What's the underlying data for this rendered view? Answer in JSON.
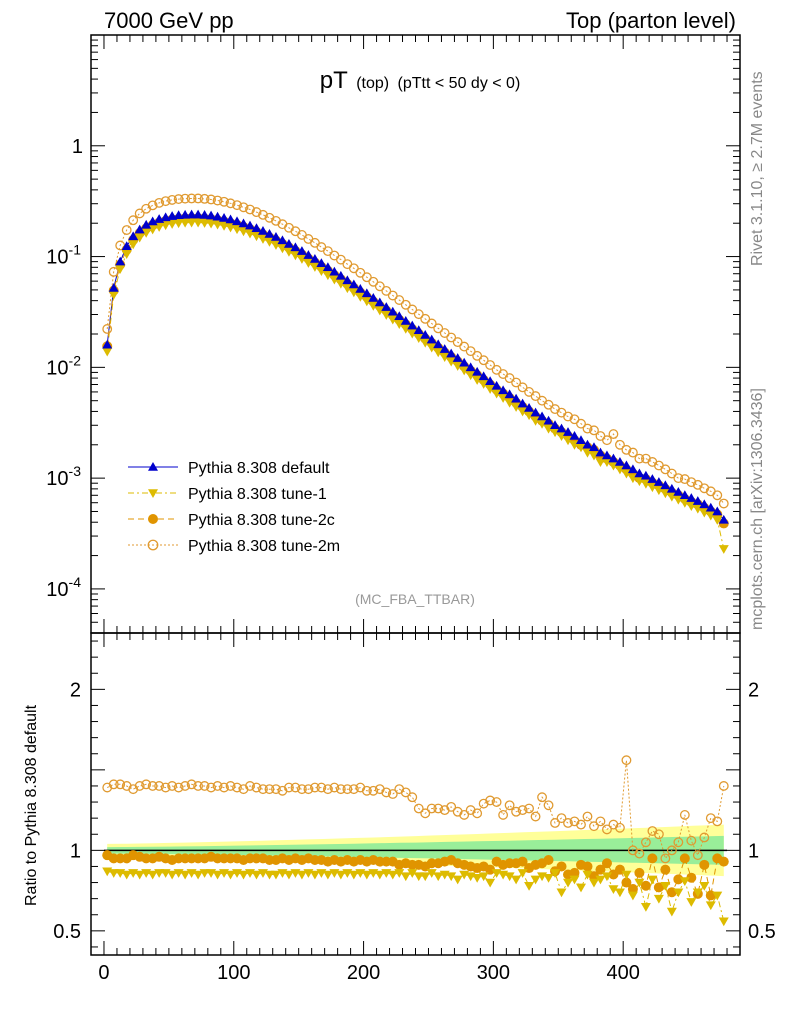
{
  "header": {
    "left": "7000 GeV pp",
    "right": "Top (parton level)"
  },
  "plot_title": {
    "main": "pT",
    "sub1": "(top)",
    "sub2": "(pTtt < 50 dy < 0)"
  },
  "side_labels": {
    "rivet": "Rivet 3.1.10, ≥ 2.7M events",
    "mcplots": "mcplots.cern.ch [arXiv:1306.3436]"
  },
  "analysis_tag": "(MC_FBA_TTBAR)",
  "colors": {
    "default": "#0000cc",
    "tune1": "#ddbb00",
    "tune2c": "#e09400",
    "tune2m": "#e09a30",
    "band_yellow": "#ffff99",
    "band_green": "#99ee99"
  },
  "legend": [
    {
      "key": "default",
      "label": "Pythia 8.308 default"
    },
    {
      "key": "tune1",
      "label": "Pythia 8.308 tune-1"
    },
    {
      "key": "tune2c",
      "label": "Pythia 8.308 tune-2c"
    },
    {
      "key": "tune2m",
      "label": "Pythia 8.308 tune-2m"
    }
  ],
  "chart_data": [
    {
      "type": "line",
      "scale": "log",
      "xlim": [
        -10,
        490
      ],
      "ylim": [
        4e-05,
        10
      ],
      "y_tick_labels": [
        "1",
        "10^-1",
        "10^-2",
        "10^-3",
        "10^-4"
      ],
      "grid": false,
      "legend_position": "bottom-left",
      "x": [
        2.5,
        7.5,
        12.5,
        17.5,
        22.5,
        27.5,
        32.5,
        37.5,
        42.5,
        47.5,
        52.5,
        57.5,
        62.5,
        67.5,
        72.5,
        77.5,
        82.5,
        87.5,
        92.5,
        97.5,
        102.5,
        107.5,
        112.5,
        117.5,
        122.5,
        127.5,
        132.5,
        137.5,
        142.5,
        147.5,
        152.5,
        157.5,
        162.5,
        167.5,
        172.5,
        177.5,
        182.5,
        187.5,
        192.5,
        197.5,
        202.5,
        207.5,
        212.5,
        217.5,
        222.5,
        227.5,
        232.5,
        237.5,
        242.5,
        247.5,
        252.5,
        257.5,
        262.5,
        267.5,
        272.5,
        277.5,
        282.5,
        287.5,
        292.5,
        297.5,
        302.5,
        307.5,
        312.5,
        317.5,
        322.5,
        327.5,
        332.5,
        337.5,
        342.5,
        347.5,
        352.5,
        357.5,
        362.5,
        367.5,
        372.5,
        377.5,
        382.5,
        387.5,
        392.5,
        397.5,
        402.5,
        407.5,
        412.5,
        417.5,
        422.5,
        427.5,
        432.5,
        437.5,
        442.5,
        447.5,
        452.5,
        457.5,
        462.5,
        467.5,
        472.5,
        477.5
      ],
      "series": [
        {
          "name": "Pythia 8.308 default",
          "key": "default",
          "values": [
            0.016,
            0.052,
            0.09,
            0.124,
            0.152,
            0.175,
            0.193,
            0.207,
            0.218,
            0.226,
            0.232,
            0.236,
            0.238,
            0.239,
            0.239,
            0.237,
            0.234,
            0.229,
            0.223,
            0.216,
            0.208,
            0.199,
            0.19,
            0.18,
            0.17,
            0.16,
            0.15,
            0.14,
            0.13,
            0.121,
            0.112,
            0.103,
            0.095,
            0.087,
            0.08,
            0.073,
            0.067,
            0.061,
            0.056,
            0.051,
            0.0465,
            0.0423,
            0.0385,
            0.035,
            0.0318,
            0.0289,
            0.0262,
            0.0238,
            0.0216,
            0.0196,
            0.0178,
            0.0161,
            0.0146,
            0.0133,
            0.0121,
            0.011,
            0.01,
            0.0091,
            0.0083,
            0.0075,
            0.0068,
            0.0062,
            0.0057,
            0.0052,
            0.0047,
            0.0043,
            0.0039,
            0.0036,
            0.0033,
            0.003,
            0.0028,
            0.0026,
            0.0024,
            0.0022,
            0.002,
            0.0019,
            0.0017,
            0.0016,
            0.0015,
            0.0014,
            0.0013,
            0.0012,
            0.0011,
            0.00105,
            0.00098,
            0.00092,
            0.00086,
            0.0008,
            0.00075,
            0.0007,
            0.00066,
            0.00062,
            0.00058,
            0.00054,
            0.0005,
            0.00042
          ]
        },
        {
          "name": "Pythia 8.308 tune-1",
          "key": "tune1",
          "values": [
            0.0139,
            0.0452,
            0.0774,
            0.1054,
            0.1292,
            0.1488,
            0.1641,
            0.1759,
            0.1853,
            0.1921,
            0.1972,
            0.2006,
            0.2023,
            0.2032,
            0.2032,
            0.2015,
            0.1989,
            0.1947,
            0.1896,
            0.1836,
            0.1768,
            0.1692,
            0.1615,
            0.153,
            0.1445,
            0.136,
            0.1275,
            0.119,
            0.1105,
            0.1029,
            0.0952,
            0.0876,
            0.0808,
            0.074,
            0.068,
            0.0621,
            0.057,
            0.0519,
            0.0476,
            0.0434,
            0.0395,
            0.036,
            0.0327,
            0.0298,
            0.027,
            0.0246,
            0.0223,
            0.0202,
            0.0184,
            0.0167,
            0.0151,
            0.0137,
            0.0124,
            0.0113,
            0.0103,
            0.0094,
            0.0085,
            0.0077,
            0.0071,
            0.0064,
            0.0058,
            0.0053,
            0.0048,
            0.0044,
            0.004,
            0.0037,
            0.0033,
            0.0031,
            0.0028,
            0.0026,
            0.0024,
            0.0022,
            0.002,
            0.0019,
            0.0017,
            0.0016,
            0.0014,
            0.0014,
            0.0013,
            0.0012,
            0.0011,
            0.001,
            0.00094,
            0.00089,
            0.00083,
            0.00078,
            0.00073,
            0.00068,
            0.00064,
            0.0006,
            0.00056,
            0.00053,
            0.00049,
            0.00046,
            0.00042,
            0.00023
          ]
        },
        {
          "name": "Pythia 8.308 tune-2c",
          "key": "tune2c",
          "values": [
            0.0155,
            0.0494,
            0.0846,
            0.1153,
            0.1414,
            0.1628,
            0.1795,
            0.1925,
            0.2027,
            0.2102,
            0.2158,
            0.2195,
            0.2213,
            0.2223,
            0.2223,
            0.2204,
            0.2176,
            0.213,
            0.2074,
            0.2009,
            0.1934,
            0.1851,
            0.1767,
            0.1674,
            0.1581,
            0.1488,
            0.1395,
            0.1302,
            0.1209,
            0.1125,
            0.1042,
            0.0958,
            0.0884,
            0.0809,
            0.0744,
            0.0679,
            0.0623,
            0.0567,
            0.0521,
            0.0474,
            0.0432,
            0.0393,
            0.0358,
            0.0326,
            0.0296,
            0.0269,
            0.0244,
            0.0221,
            0.0201,
            0.0182,
            0.0166,
            0.015,
            0.0136,
            0.0124,
            0.0113,
            0.0102,
            0.0093,
            0.0085,
            0.0077,
            0.007,
            0.0063,
            0.0058,
            0.0053,
            0.0048,
            0.0044,
            0.004,
            0.0036,
            0.0033,
            0.0031,
            0.0028,
            0.0026,
            0.0024,
            0.0022,
            0.002,
            0.0019,
            0.0018,
            0.0016,
            0.0015,
            0.0014,
            0.0013,
            0.0012,
            0.0011,
            0.001,
            0.00098,
            0.00091,
            0.00086,
            0.0008,
            0.00074,
            0.0007,
            0.00065,
            0.00061,
            0.00058,
            0.00054,
            0.0005,
            0.00047,
            0.00039
          ]
        },
        {
          "name": "Pythia 8.308 tune-2m",
          "key": "tune2m",
          "values": [
            0.0222,
            0.0728,
            0.126,
            0.1736,
            0.2128,
            0.245,
            0.2702,
            0.2898,
            0.3052,
            0.3164,
            0.3248,
            0.3304,
            0.3332,
            0.3346,
            0.3346,
            0.3318,
            0.3276,
            0.3206,
            0.3122,
            0.3024,
            0.2912,
            0.2786,
            0.266,
            0.252,
            0.238,
            0.224,
            0.21,
            0.196,
            0.182,
            0.1694,
            0.1568,
            0.1442,
            0.133,
            0.1218,
            0.112,
            0.1022,
            0.0938,
            0.0854,
            0.0784,
            0.0714,
            0.0651,
            0.0592,
            0.0539,
            0.049,
            0.0445,
            0.0405,
            0.0367,
            0.0333,
            0.0302,
            0.0274,
            0.0249,
            0.0225,
            0.0204,
            0.0186,
            0.0169,
            0.0154,
            0.014,
            0.0127,
            0.0116,
            0.0105,
            0.0095,
            0.0087,
            0.008,
            0.0073,
            0.0066,
            0.006,
            0.0055,
            0.005,
            0.0046,
            0.0042,
            0.0039,
            0.0036,
            0.0034,
            0.0031,
            0.0028,
            0.0027,
            0.0024,
            0.0022,
            0.0025,
            0.002,
            0.0018,
            0.0017,
            0.0015,
            0.0015,
            0.0014,
            0.0013,
            0.0012,
            0.0011,
            0.001,
            0.00098,
            0.00092,
            0.00087,
            0.00081,
            0.00076,
            0.0007,
            0.00059
          ]
        }
      ]
    },
    {
      "type": "line",
      "ylabel": "Ratio to Pythia 8.308 default",
      "xlim": [
        -10,
        490
      ],
      "ylim": [
        0.35,
        2.35
      ],
      "x_ticks": [
        0,
        100,
        200,
        300,
        400
      ],
      "y_ticks": [
        0.5,
        1,
        2
      ],
      "reference_line": 1,
      "band_yellow_halfwidth": [
        0.04,
        0.16
      ],
      "band_green_halfwidth": [
        0.02,
        0.09
      ],
      "series": [
        {
          "name": "Pythia 8.308 tune-1",
          "key": "tune1",
          "values": [
            0.87,
            0.86,
            0.86,
            0.85,
            0.86,
            0.85,
            0.86,
            0.85,
            0.86,
            0.86,
            0.85,
            0.86,
            0.85,
            0.86,
            0.85,
            0.86,
            0.86,
            0.85,
            0.86,
            0.85,
            0.86,
            0.85,
            0.86,
            0.85,
            0.86,
            0.85,
            0.85,
            0.86,
            0.85,
            0.86,
            0.85,
            0.86,
            0.85,
            0.86,
            0.85,
            0.86,
            0.85,
            0.86,
            0.85,
            0.86,
            0.85,
            0.86,
            0.85,
            0.86,
            0.85,
            0.86,
            0.84,
            0.86,
            0.84,
            0.84,
            0.86,
            0.84,
            0.85,
            0.84,
            0.82,
            0.85,
            0.84,
            0.83,
            0.84,
            0.8,
            0.86,
            0.85,
            0.84,
            0.82,
            0.86,
            0.78,
            0.82,
            0.84,
            0.83,
            0.86,
            0.74,
            0.8,
            0.82,
            0.77,
            0.85,
            0.8,
            0.82,
            0.84,
            0.76,
            0.74,
            0.85,
            0.72,
            0.8,
            0.65,
            0.82,
            0.7,
            0.78,
            0.62,
            0.74,
            0.81,
            0.68,
            0.74,
            0.78,
            0.66,
            0.72,
            0.56
          ]
        },
        {
          "name": "Pythia 8.308 tune-2c",
          "key": "tune2c",
          "values": [
            0.97,
            0.95,
            0.95,
            0.95,
            0.97,
            0.96,
            0.95,
            0.95,
            0.96,
            0.95,
            0.94,
            0.95,
            0.95,
            0.95,
            0.95,
            0.95,
            0.96,
            0.95,
            0.95,
            0.95,
            0.95,
            0.94,
            0.95,
            0.95,
            0.95,
            0.94,
            0.94,
            0.95,
            0.94,
            0.95,
            0.94,
            0.95,
            0.94,
            0.94,
            0.93,
            0.94,
            0.93,
            0.94,
            0.93,
            0.94,
            0.93,
            0.94,
            0.93,
            0.93,
            0.93,
            0.91,
            0.92,
            0.91,
            0.91,
            0.9,
            0.92,
            0.92,
            0.93,
            0.94,
            0.92,
            0.91,
            0.9,
            0.89,
            0.9,
            0.88,
            0.93,
            0.91,
            0.92,
            0.92,
            0.93,
            0.89,
            0.91,
            0.92,
            0.94,
            0.87,
            0.9,
            0.85,
            0.86,
            0.91,
            0.9,
            0.84,
            0.88,
            0.92,
            0.85,
            0.88,
            0.8,
            0.76,
            0.86,
            0.78,
            0.95,
            0.77,
            0.88,
            0.74,
            0.82,
            0.95,
            0.83,
            0.73,
            0.91,
            0.72,
            0.95,
            0.93
          ]
        },
        {
          "name": "Pythia 8.308 tune-2m",
          "key": "tune2m",
          "values": [
            1.39,
            1.41,
            1.41,
            1.4,
            1.38,
            1.4,
            1.41,
            1.4,
            1.4,
            1.39,
            1.4,
            1.39,
            1.4,
            1.41,
            1.4,
            1.4,
            1.39,
            1.4,
            1.39,
            1.4,
            1.39,
            1.38,
            1.4,
            1.39,
            1.38,
            1.38,
            1.38,
            1.37,
            1.39,
            1.39,
            1.38,
            1.38,
            1.39,
            1.39,
            1.38,
            1.39,
            1.38,
            1.38,
            1.38,
            1.39,
            1.37,
            1.37,
            1.38,
            1.36,
            1.35,
            1.38,
            1.36,
            1.33,
            1.26,
            1.23,
            1.26,
            1.26,
            1.25,
            1.27,
            1.24,
            1.22,
            1.25,
            1.23,
            1.29,
            1.31,
            1.3,
            1.22,
            1.28,
            1.24,
            1.25,
            1.26,
            1.21,
            1.33,
            1.28,
            1.17,
            1.2,
            1.17,
            1.18,
            1.16,
            1.21,
            1.15,
            1.18,
            1.13,
            1.16,
            1.14,
            1.56,
            1.0,
            0.98,
            1.05,
            1.12,
            1.1,
            0.95,
            1.0,
            1.05,
            1.22,
            1.06,
            0.97,
            1.08,
            1.2,
            1.18,
            1.4
          ]
        }
      ]
    }
  ]
}
